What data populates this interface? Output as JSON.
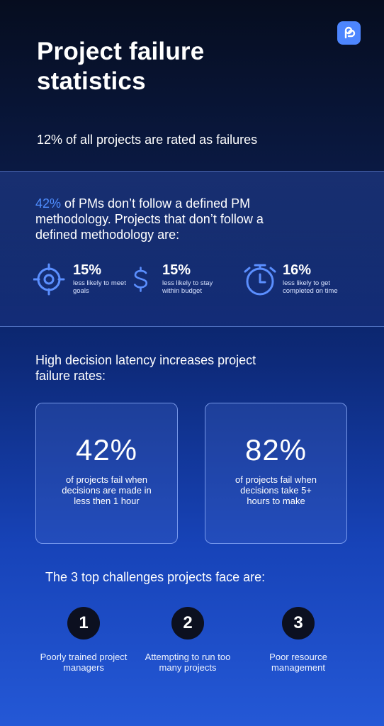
{
  "title": "Project failure statistics",
  "intro": "12% of all projects are rated as failures",
  "methodology": {
    "highlight": "42%",
    "text": " of PMs don’t follow a defined PM methodology. Projects that don’t follow a defined methodology are:"
  },
  "stats": [
    {
      "value": "15%",
      "caption": "less likely to meet goals",
      "icon": "target-icon"
    },
    {
      "value": "15%",
      "caption": "less likely to stay within budget",
      "icon": "dollar-icon"
    },
    {
      "value": "16%",
      "caption": "less likely to get completed on time",
      "icon": "stopwatch-icon"
    }
  ],
  "latency": {
    "heading": "High decision latency increases project failure rates:",
    "cards": [
      {
        "value": "42%",
        "text": "of projects fail when decisions are made in less then 1 hour"
      },
      {
        "value": "82%",
        "text": "of projects fail when decisions take 5+ hours to make"
      }
    ]
  },
  "challenges": {
    "heading": "The 3 top challenges projects face are:",
    "items": [
      {
        "number": "1",
        "text": "Poorly trained project managers"
      },
      {
        "number": "2",
        "text": "Attempting to run too many projects"
      },
      {
        "number": "3",
        "text": "Poor resource management"
      }
    ]
  },
  "colors": {
    "accent": "#4f8dff",
    "logo": "#4d86ff",
    "badge": "#0c1020"
  }
}
